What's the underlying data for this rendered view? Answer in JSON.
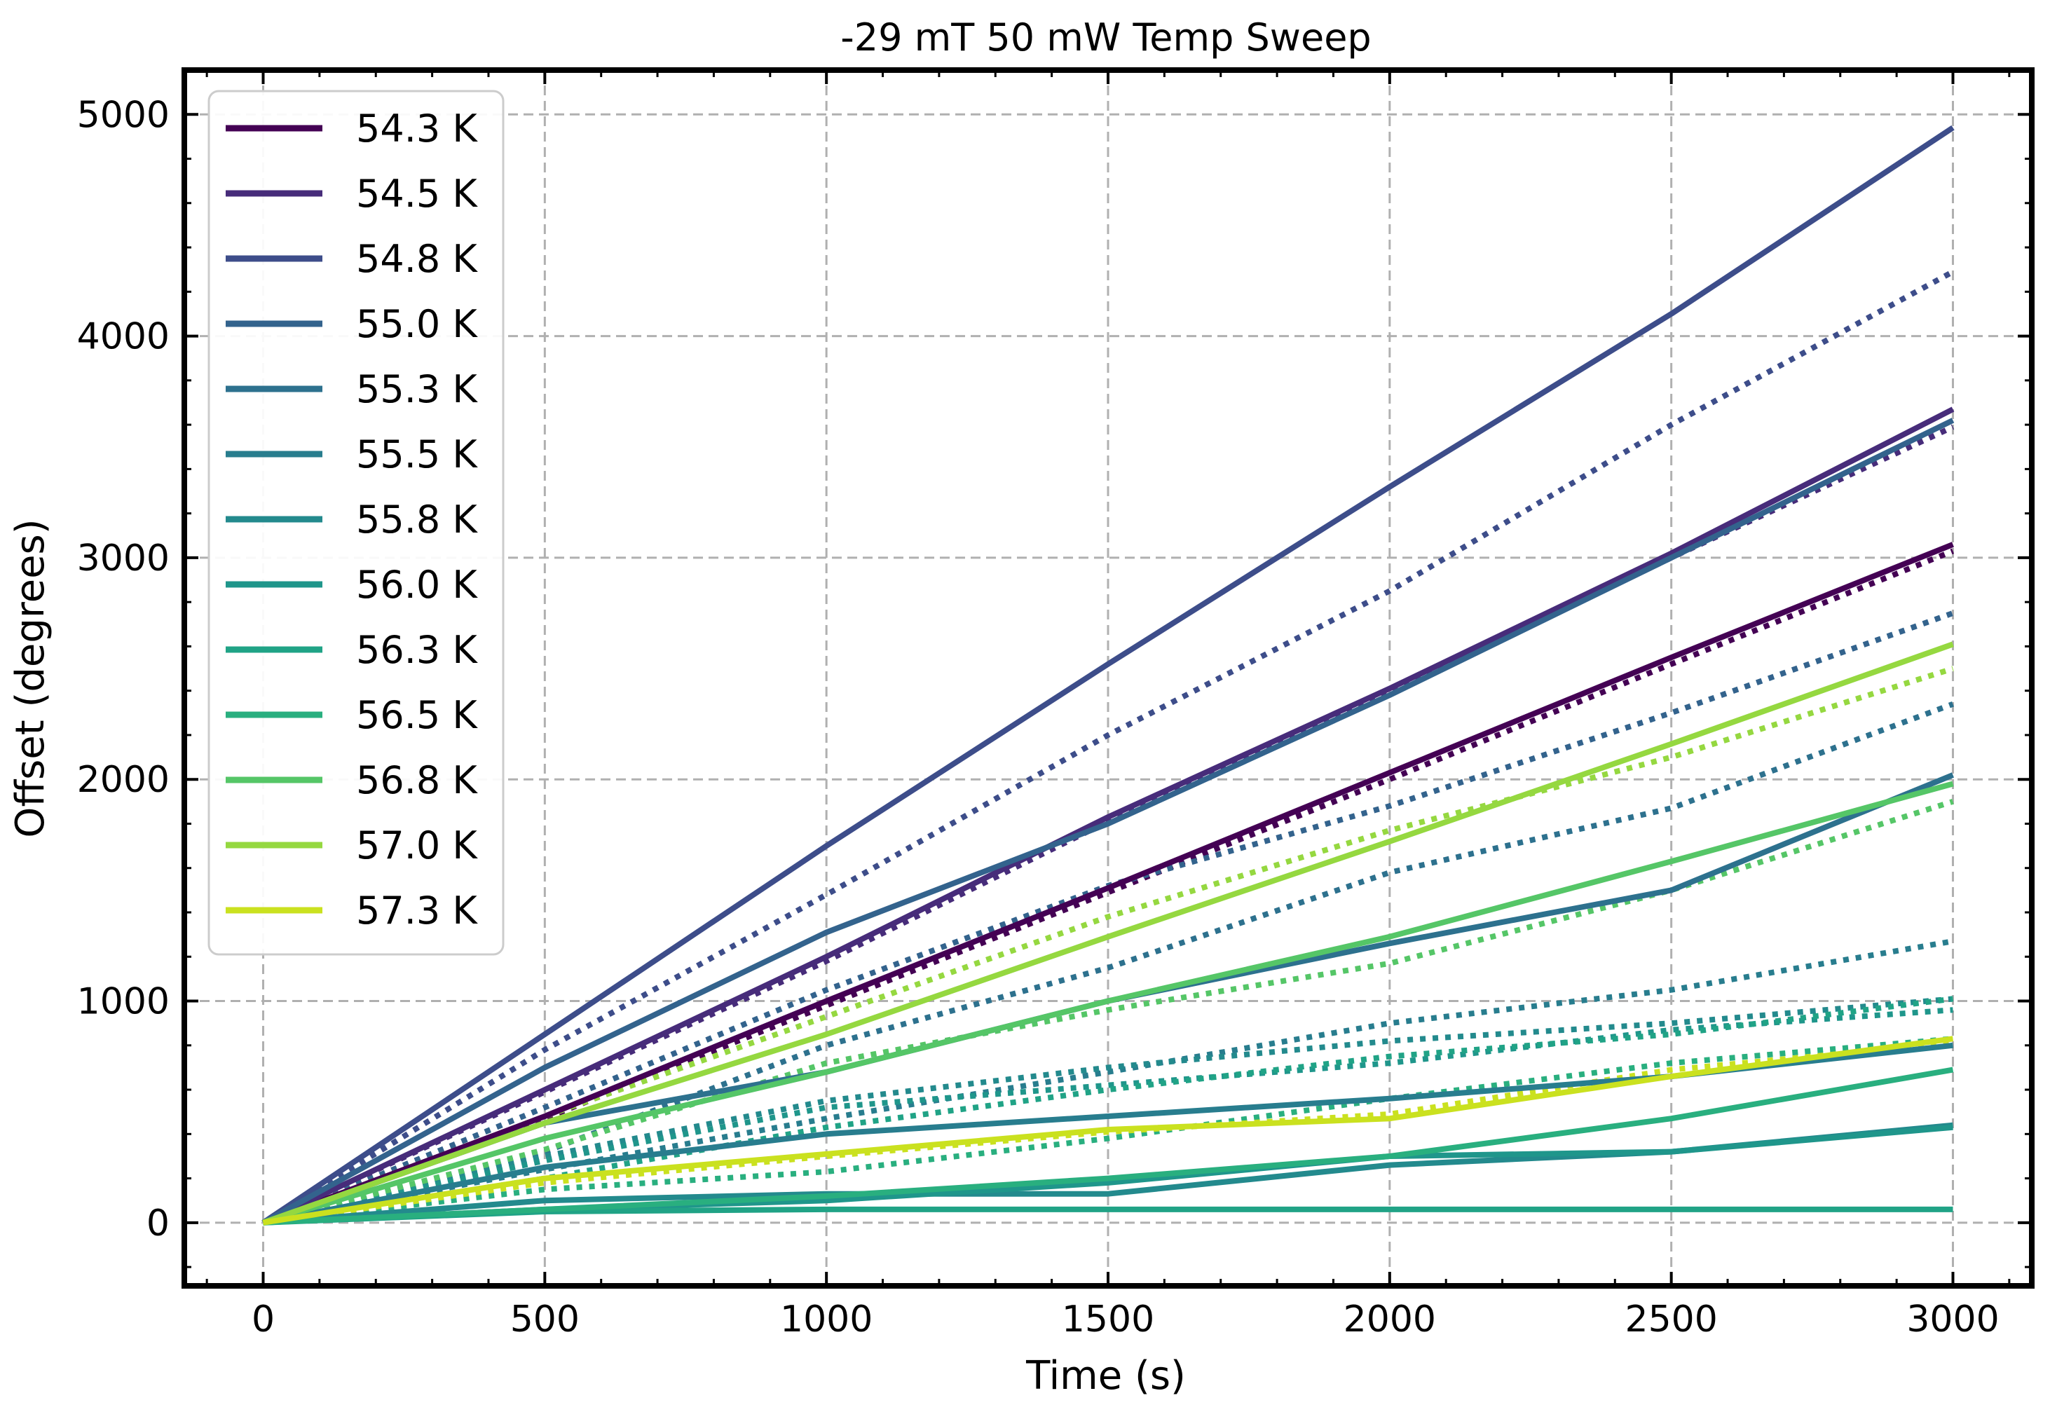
{
  "chart_data": {
    "type": "line",
    "title": "-29 mT 50 mW Temp Sweep",
    "xlabel": "Time (s)",
    "ylabel": "Offset (degrees)",
    "xlim": [
      -140,
      3140
    ],
    "ylim": [
      -285,
      5200
    ],
    "xticks": [
      0,
      500,
      1000,
      1500,
      2000,
      2500,
      3000
    ],
    "yticks": [
      0,
      1000,
      2000,
      3000,
      4000,
      5000
    ],
    "xtick_labels": [
      "0",
      "500",
      "1000",
      "1500",
      "2000",
      "2500",
      "3000"
    ],
    "ytick_labels": [
      "0",
      "1000",
      "2000",
      "3000",
      "4000",
      "5000"
    ],
    "grid": true,
    "legend_position": "top-left",
    "line_styles": [
      "solid",
      "dotted"
    ],
    "series": [
      {
        "name": "54.3 K",
        "color": "#440154",
        "x": [
          0,
          500,
          1000,
          1500,
          2000,
          2500,
          3000
        ],
        "solid": [
          0,
          480,
          1000,
          1510,
          2030,
          2550,
          3060
        ],
        "dotted": [
          0,
          470,
          980,
          1490,
          2000,
          2520,
          3030
        ]
      },
      {
        "name": "54.5 K",
        "color": "#472c7a",
        "x": [
          0,
          500,
          1000,
          1500,
          2000,
          2500,
          3000
        ],
        "solid": [
          0,
          600,
          1200,
          1830,
          2410,
          3020,
          3670
        ],
        "dotted": [
          0,
          590,
          1180,
          1810,
          2390,
          3000,
          3590
        ]
      },
      {
        "name": "54.8 K",
        "color": "#3d4d8a",
        "x": [
          0,
          500,
          1000,
          1500,
          2000,
          2500,
          3000
        ],
        "solid": [
          0,
          850,
          1700,
          2520,
          3320,
          4100,
          4940
        ],
        "dotted": [
          0,
          780,
          1480,
          2200,
          2850,
          3600,
          4290
        ]
      },
      {
        "name": "55.0 K",
        "color": "#33638d",
        "x": [
          0,
          500,
          1000,
          1500,
          2000,
          2500,
          3000
        ],
        "solid": [
          0,
          700,
          1310,
          1800,
          2380,
          3000,
          3620
        ],
        "dotted": [
          0,
          520,
          1050,
          1520,
          1880,
          2300,
          2750
        ]
      },
      {
        "name": "55.3 K",
        "color": "#2d718e",
        "x": [
          0,
          500,
          1000,
          1500,
          2000,
          2500,
          3000
        ],
        "solid": [
          0,
          450,
          680,
          1000,
          1260,
          1500,
          2020
        ],
        "dotted": [
          0,
          320,
          800,
          1150,
          1580,
          1870,
          2340
        ]
      },
      {
        "name": "55.5 K",
        "color": "#287d8e",
        "x": [
          0,
          500,
          1000,
          1500,
          2000,
          2500,
          3000
        ],
        "solid": [
          0,
          250,
          400,
          480,
          560,
          660,
          800
        ],
        "dotted": [
          0,
          240,
          470,
          680,
          900,
          1050,
          1270
        ]
      },
      {
        "name": "55.8 K",
        "color": "#238a8d",
        "x": [
          0,
          500,
          1000,
          1500,
          2000,
          2500,
          3000
        ],
        "solid": [
          0,
          100,
          130,
          130,
          260,
          320,
          440
        ],
        "dotted": [
          0,
          300,
          550,
          700,
          820,
          900,
          1010
        ]
      },
      {
        "name": "56.0 K",
        "color": "#1f968b",
        "x": [
          0,
          500,
          1000,
          1500,
          2000,
          2500,
          3000
        ],
        "solid": [
          0,
          60,
          100,
          180,
          300,
          320,
          430
        ],
        "dotted": [
          0,
          280,
          520,
          620,
          720,
          870,
          960
        ]
      },
      {
        "name": "56.3 K",
        "color": "#20a386",
        "x": [
          0,
          500,
          1000,
          1500,
          2000,
          2500,
          3000
        ],
        "solid": [
          0,
          50,
          60,
          60,
          60,
          60,
          60
        ],
        "dotted": [
          0,
          200,
          430,
          600,
          750,
          850,
          1010
        ]
      },
      {
        "name": "56.5 K",
        "color": "#29af7f",
        "x": [
          0,
          500,
          1000,
          1500,
          2000,
          2500,
          3000
        ],
        "solid": [
          0,
          60,
          120,
          200,
          300,
          470,
          690
        ],
        "dotted": [
          0,
          150,
          230,
          380,
          560,
          720,
          830
        ]
      },
      {
        "name": "56.8 K",
        "color": "#55c667",
        "x": [
          0,
          500,
          1000,
          1500,
          2000,
          2500,
          3000
        ],
        "solid": [
          0,
          380,
          680,
          1000,
          1290,
          1630,
          1980
        ],
        "dotted": [
          0,
          330,
          720,
          960,
          1170,
          1500,
          1900
        ]
      },
      {
        "name": "57.0 K",
        "color": "#95d840",
        "x": [
          0,
          500,
          1000,
          1500,
          2000,
          2500,
          3000
        ],
        "solid": [
          0,
          450,
          850,
          1290,
          1720,
          2160,
          2610
        ],
        "dotted": [
          0,
          480,
          930,
          1380,
          1770,
          2100,
          2500
        ]
      },
      {
        "name": "57.3 K",
        "color": "#cae11f",
        "x": [
          0,
          500,
          1000,
          1500,
          2000,
          2500,
          3000
        ],
        "solid": [
          0,
          200,
          310,
          420,
          470,
          660,
          830
        ],
        "dotted": [
          0,
          180,
          300,
          410,
          490,
          690,
          810
        ]
      }
    ]
  }
}
